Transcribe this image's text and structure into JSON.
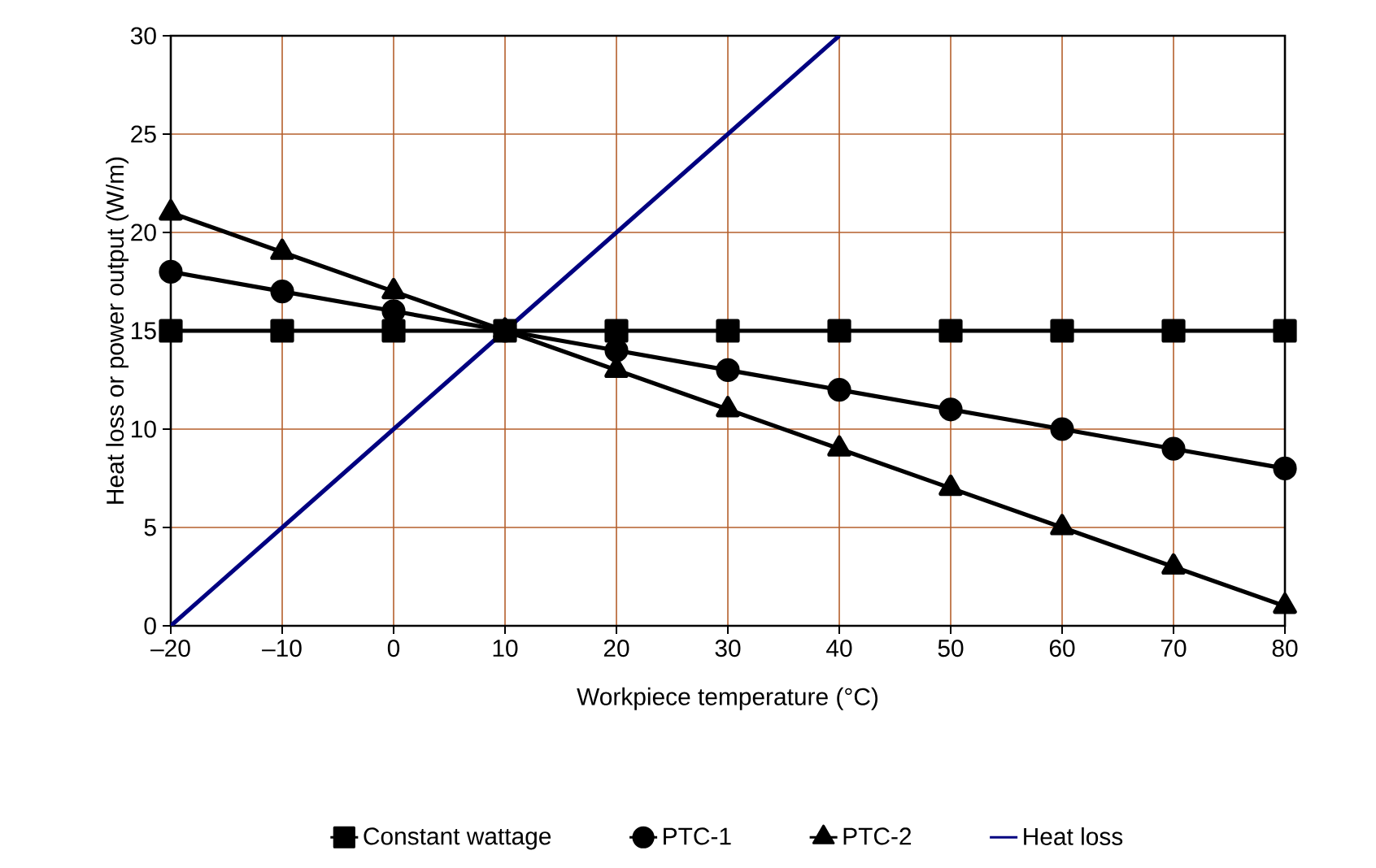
{
  "chart_data": {
    "type": "line",
    "xlabel": "Workpiece temperature   (°C)",
    "ylabel": "Heat loss or power output   (W/m)",
    "xlim": [
      -20,
      80
    ],
    "ylim": [
      0,
      30
    ],
    "xticks": [
      {
        "value": -20,
        "label": "–20"
      },
      {
        "value": -10,
        "label": "–10"
      },
      0,
      10,
      20,
      30,
      40,
      50,
      60,
      70,
      80
    ],
    "yticks": [
      0,
      5,
      10,
      15,
      20,
      25,
      30
    ],
    "grid": true,
    "legend": "bottom",
    "line_style": "solid",
    "x": [
      -20,
      -10,
      0,
      10,
      20,
      30,
      40,
      50,
      60,
      70,
      80
    ],
    "series": [
      {
        "name": "Constant wattage",
        "color": "#000000",
        "marker": "square",
        "values": [
          15,
          15,
          15,
          15,
          15,
          15,
          15,
          15,
          15,
          15,
          15
        ]
      },
      {
        "name": "PTC-1",
        "color": "#000000",
        "marker": "circle",
        "values": [
          18,
          17,
          16,
          15,
          14,
          13,
          12,
          11,
          10,
          9,
          8
        ]
      },
      {
        "name": "PTC-2",
        "color": "#000000",
        "marker": "triangle",
        "values": [
          21,
          19,
          17,
          15,
          13,
          11,
          9,
          7,
          5,
          3,
          1
        ]
      },
      {
        "name": "Heat loss",
        "color": "#000080",
        "marker": "none",
        "x": [
          -20,
          -10,
          0,
          10,
          20,
          30,
          40
        ],
        "values": [
          0,
          5,
          10,
          15,
          20,
          25,
          30
        ]
      }
    ]
  }
}
